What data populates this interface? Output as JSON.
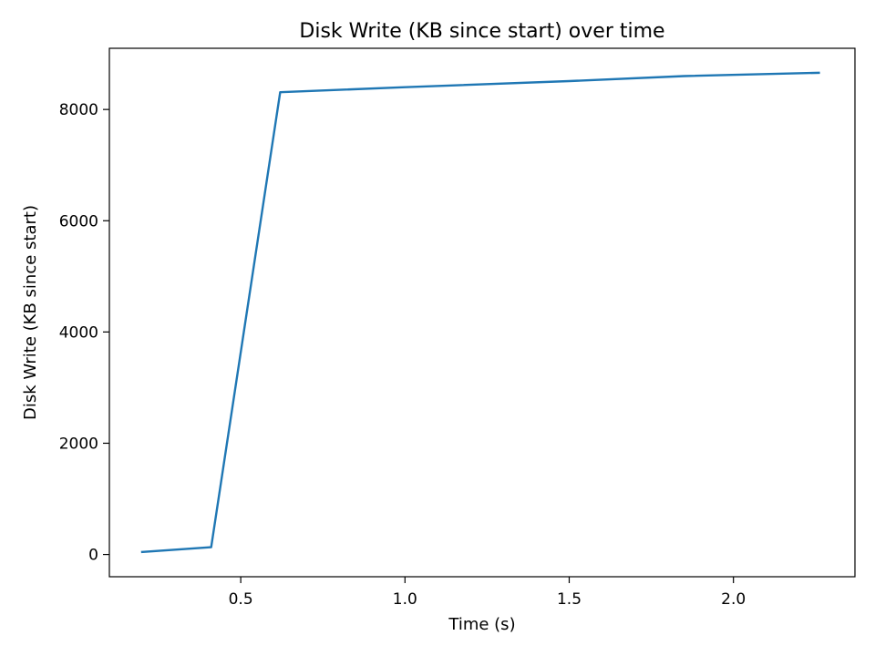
{
  "chart_data": {
    "type": "line",
    "title": "Disk Write (KB since start) over time",
    "xlabel": "Time (s)",
    "ylabel": "Disk Write (KB since start)",
    "xlim": [
      0.1,
      2.37
    ],
    "ylim": [
      -400,
      9100
    ],
    "xticks": [
      0.5,
      1.0,
      1.5,
      2.0
    ],
    "xtick_labels": [
      "0.5",
      "1.0",
      "1.5",
      "2.0"
    ],
    "yticks": [
      0,
      2000,
      4000,
      6000,
      8000
    ],
    "ytick_labels": [
      "0",
      "2000",
      "4000",
      "6000",
      "8000"
    ],
    "grid": false,
    "series": [
      {
        "color": "#1f77b4",
        "x": [
          0.2,
          0.41,
          0.62,
          1.0,
          1.5,
          1.85,
          2.26
        ],
        "y": [
          45,
          130,
          8310,
          8400,
          8510,
          8600,
          8660
        ]
      }
    ]
  }
}
